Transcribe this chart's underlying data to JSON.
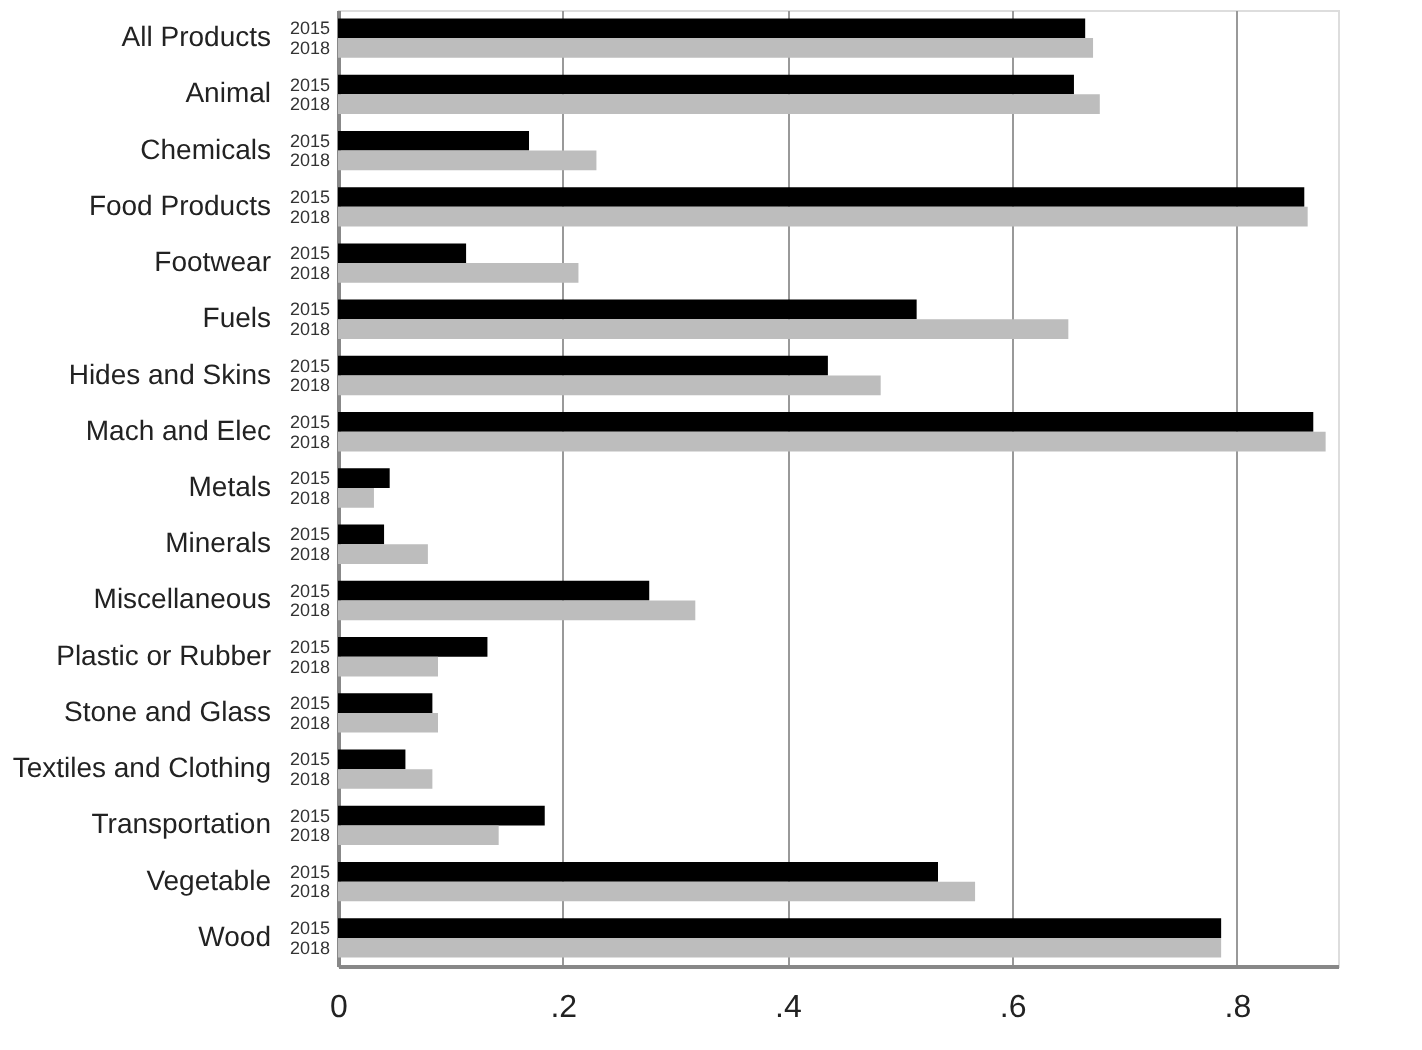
{
  "chart_data": {
    "type": "bar",
    "orientation": "horizontal",
    "categories": [
      "All Products",
      "Animal",
      "Chemicals",
      "Food Products",
      "Footwear",
      "Fuels",
      "Hides and Skins",
      "Mach and Elec",
      "Metals",
      "Minerals",
      "Miscellaneous",
      "Plastic or Rubber",
      "Stone and Glass",
      "Textiles and Clothing",
      "Transportation",
      "Vegetable",
      "Wood"
    ],
    "series": [
      {
        "name": "2015",
        "color": "#000000",
        "values": [
          0.665,
          0.655,
          0.17,
          0.86,
          0.114,
          0.515,
          0.436,
          0.868,
          0.046,
          0.041,
          0.277,
          0.133,
          0.084,
          0.06,
          0.184,
          0.534,
          0.786
        ]
      },
      {
        "name": "2018",
        "color": "#bdbdbd",
        "values": [
          0.672,
          0.678,
          0.23,
          0.863,
          0.214,
          0.65,
          0.483,
          0.879,
          0.032,
          0.08,
          0.318,
          0.089,
          0.089,
          0.084,
          0.143,
          0.567,
          0.786
        ]
      }
    ],
    "xlim": [
      0,
      0.89
    ],
    "xticks": [
      0,
      {
        "value": 0.2,
        "label": ".2"
      },
      {
        "value": 0.4,
        "label": ".4"
      },
      {
        "value": 0.6,
        "label": ".6"
      },
      {
        "value": 0.8,
        "label": ".8"
      }
    ],
    "grid": "x",
    "legend": false
  }
}
